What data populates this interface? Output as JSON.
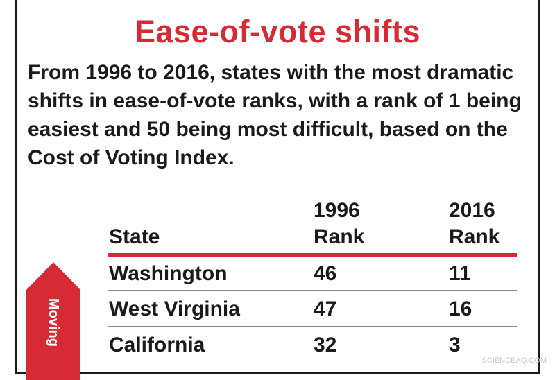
{
  "colors": {
    "accent": "#d62a35",
    "text": "#1a1a1a",
    "rule": "#8a8a8a"
  },
  "title": "Ease-of-vote shifts",
  "subtitle": "From 1996 to 2016, states with the most dramatic shifts in ease-of-vote ranks, with a rank of 1 being easiest and 50 being most difficult, based on the Cost of Voting Index.",
  "table": {
    "headers": {
      "state": "State",
      "rank1996_year": "1996",
      "rank1996_word": "Rank",
      "rank2016_year": "2016",
      "rank2016_word": "Rank"
    },
    "rows": [
      {
        "state": "Washington",
        "rank1996": "46",
        "rank2016": "11"
      },
      {
        "state": "West Virginia",
        "rank1996": "47",
        "rank2016": "16"
      },
      {
        "state": "California",
        "rank1996": "32",
        "rank2016": "3"
      }
    ]
  },
  "arrow_label": "Moving",
  "watermark": "SCIENCEAQ.COM",
  "chart_data": {
    "type": "table",
    "title": "Ease-of-vote shifts",
    "columns": [
      "State",
      "1996 Rank",
      "2016 Rank"
    ],
    "rows": [
      [
        "Washington",
        46,
        11
      ],
      [
        "West Virginia",
        47,
        16
      ],
      [
        "California",
        32,
        3
      ]
    ]
  }
}
